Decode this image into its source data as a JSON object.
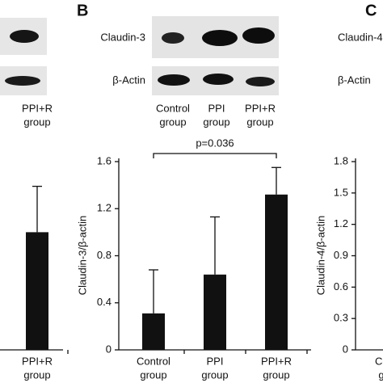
{
  "chart_data": [
    {
      "type": "bar",
      "categories": [
        [
          "PPI+R",
          "group"
        ]
      ],
      "values": [
        1.0
      ],
      "errors": [
        0.39
      ],
      "ylim": [
        0,
        1.6
      ],
      "color": "#111111",
      "blot_labels": [
        [
          "PPI+R",
          "group"
        ]
      ]
    },
    {
      "type": "bar",
      "panel": "B",
      "categories": [
        [
          "Control",
          "group"
        ],
        [
          "PPI",
          "group"
        ],
        [
          "PPI+R",
          "group"
        ]
      ],
      "values": [
        0.31,
        0.64,
        1.32
      ],
      "errors": [
        0.37,
        0.49,
        0.23
      ],
      "ylim": [
        0,
        1.6
      ],
      "yticks": [
        0,
        0.4,
        0.8,
        1.2,
        1.6
      ],
      "ylabel": "Claudin-3/β-actin",
      "annotation": "p=0.036",
      "color": "#111111",
      "row_labels": [
        "Claudin-3",
        "β-Actin"
      ],
      "blot_labels": [
        [
          "Control",
          "group"
        ],
        [
          "PPI",
          "group"
        ],
        [
          "PPI+R",
          "group"
        ]
      ]
    },
    {
      "type": "bar",
      "panel": "C",
      "categories": [
        [
          "Control",
          "group"
        ]
      ],
      "values": [
        null
      ],
      "ylim": [
        0,
        1.8
      ],
      "yticks": [
        0,
        0.3,
        0.6,
        0.9,
        1.2,
        1.5,
        1.8
      ],
      "ylabel": "Claudin-4/β-actin",
      "color": "#111111",
      "row_labels": [
        "Claudin-4",
        "β-Actin"
      ]
    }
  ]
}
